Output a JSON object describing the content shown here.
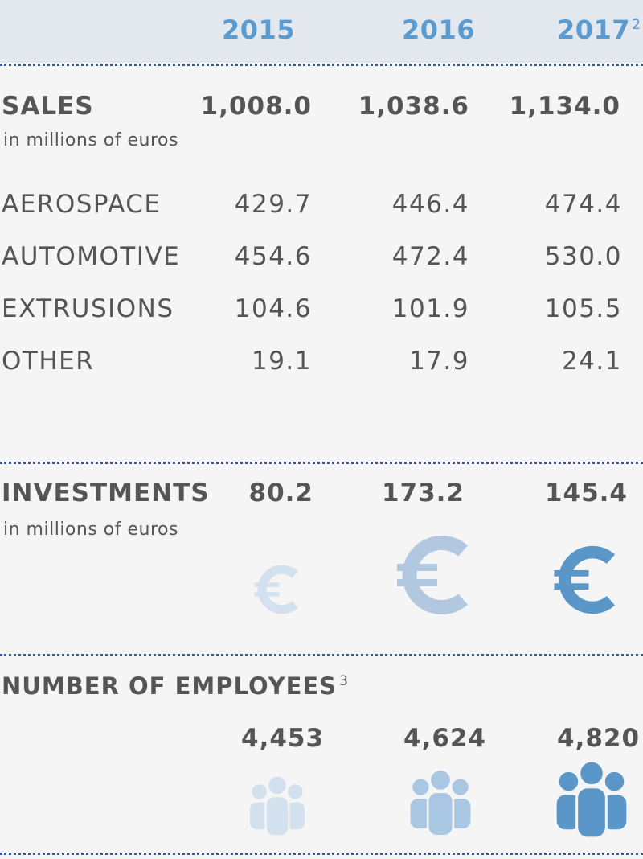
{
  "header": {
    "years": [
      "2015",
      "2016",
      "2017"
    ],
    "footnote_2017": "2"
  },
  "sales": {
    "title": "SALES",
    "subtitle": "in millions of euros",
    "totals": [
      "1,008.0",
      "1,038.6",
      "1,134.0"
    ],
    "rows": [
      {
        "label": "AEROSPACE",
        "values": [
          "429.7",
          "446.4",
          "474.4"
        ]
      },
      {
        "label": "AUTOMOTIVE",
        "values": [
          "454.6",
          "472.4",
          "530.0"
        ]
      },
      {
        "label": "EXTRUSIONS",
        "values": [
          "104.6",
          "101.9",
          "105.5"
        ]
      },
      {
        "label": "OTHER",
        "values": [
          "19.1",
          "17.9",
          "24.1"
        ]
      }
    ]
  },
  "investments": {
    "title": "INVESTMENTS",
    "subtitle": "in millions of euros",
    "values": [
      "80.2",
      "173.2",
      "145.4"
    ],
    "icon": "euro-icon",
    "icon_colors": [
      "#d3e0ee",
      "#b1c8e0",
      "#5a96c7"
    ]
  },
  "employees": {
    "title": "NUMBER OF EMPLOYEES",
    "footnote": "3",
    "values": [
      "4,453",
      "4,624",
      "4,820"
    ],
    "icon": "people-group-icon",
    "icon_colors": [
      "#d3e0ee",
      "#a9c6e3",
      "#5a96c7"
    ]
  }
}
